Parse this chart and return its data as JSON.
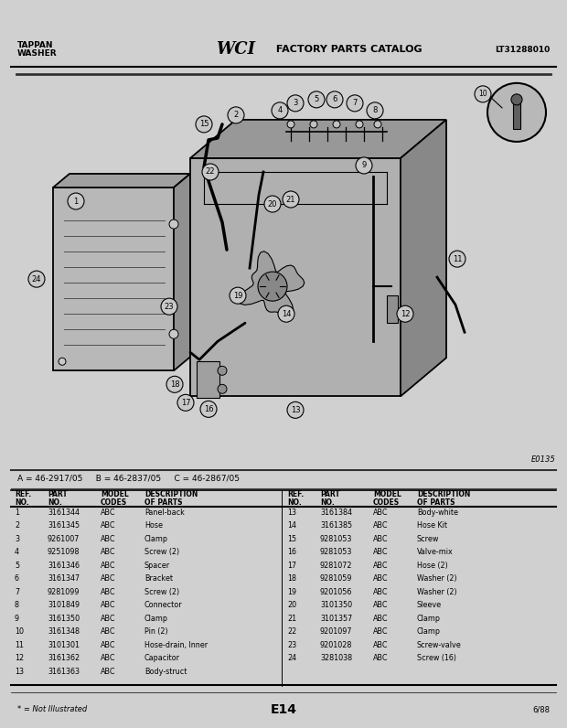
{
  "title_left1": "TAPPAN",
  "title_left2": "WASHER",
  "title_center": "WCI FACTORY PARTS CATALOG",
  "title_right": "LT31288010",
  "model_codes_line": "A = 46-2917/05     B = 46-2837/05     C = 46-2867/05",
  "diagram_code": "E0135",
  "page_code": "E14",
  "date_code": "6/88",
  "note": "* = Not Illustrated",
  "bg_color": "#d0d0d0",
  "header_bg": "#1a1a1a",
  "content_bg": "#c8c8c8",
  "diagram_bg": "#c0c0c0",
  "table_bg": "#d8d8d8",
  "parts_left": [
    {
      "ref": "1",
      "part": "3161344",
      "model": "ABC",
      "desc": "Panel-back"
    },
    {
      "ref": "2",
      "part": "3161345",
      "model": "ABC",
      "desc": "Hose"
    },
    {
      "ref": "3",
      "part": "9261007",
      "model": "ABC",
      "desc": "Clamp"
    },
    {
      "ref": "4",
      "part": "9251098",
      "model": "ABC",
      "desc": "Screw (2)"
    },
    {
      "ref": "5",
      "part": "3161346",
      "model": "ABC",
      "desc": "Spacer"
    },
    {
      "ref": "6",
      "part": "3161347",
      "model": "ABC",
      "desc": "Bracket"
    },
    {
      "ref": "7",
      "part": "9281099",
      "model": "ABC",
      "desc": "Screw (2)"
    },
    {
      "ref": "8",
      "part": "3101849",
      "model": "ABC",
      "desc": "Connector"
    },
    {
      "ref": "9",
      "part": "3161350",
      "model": "ABC",
      "desc": "Clamp"
    },
    {
      "ref": "10",
      "part": "3161348",
      "model": "ABC",
      "desc": "Pin (2)"
    },
    {
      "ref": "11",
      "part": "3101301",
      "model": "ABC",
      "desc": "Hose-drain, Inner"
    },
    {
      "ref": "12",
      "part": "3161362",
      "model": "ABC",
      "desc": "Capacitor"
    },
    {
      "ref": "13",
      "part": "3161363",
      "model": "ABC",
      "desc": "Body-struct"
    }
  ],
  "parts_right": [
    {
      "ref": "13",
      "part": "3161384",
      "model": "ABC",
      "desc": "Body-white"
    },
    {
      "ref": "14",
      "part": "3161385",
      "model": "ABC",
      "desc": "Hose Kit"
    },
    {
      "ref": "15",
      "part": "9281053",
      "model": "ABC",
      "desc": "Screw"
    },
    {
      "ref": "16",
      "part": "9281053",
      "model": "ABC",
      "desc": "Valve-mix"
    },
    {
      "ref": "17",
      "part": "9281072",
      "model": "ABC",
      "desc": "Hose (2)"
    },
    {
      "ref": "18",
      "part": "9281059",
      "model": "ABC",
      "desc": "Washer (2)"
    },
    {
      "ref": "19",
      "part": "9201056",
      "model": "ABC",
      "desc": "Washer (2)"
    },
    {
      "ref": "20",
      "part": "3101350",
      "model": "ABC",
      "desc": "Sleeve"
    },
    {
      "ref": "21",
      "part": "3101357",
      "model": "ABC",
      "desc": "Clamp"
    },
    {
      "ref": "22",
      "part": "9201097",
      "model": "ABC",
      "desc": "Clamp"
    },
    {
      "ref": "23",
      "part": "9201028",
      "model": "ABC",
      "desc": "Screw-valve"
    },
    {
      "ref": "24",
      "part": "3281038",
      "model": "ABC",
      "desc": "Screw (16)"
    }
  ]
}
